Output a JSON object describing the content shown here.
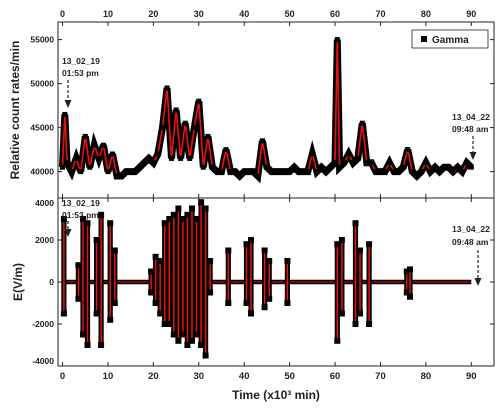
{
  "chart_data": [
    {
      "type": "line",
      "panel": "top",
      "ylabel": "Relative count rates/min",
      "xlim": [
        -1,
        95
      ],
      "ylim": [
        37000,
        57000
      ],
      "x_ticks": [
        0,
        10,
        20,
        30,
        40,
        50,
        60,
        70,
        80,
        90
      ],
      "y_ticks": [
        40000,
        45000,
        50000,
        55000
      ],
      "y_tick_labels": [
        "40000",
        "45000",
        "50000",
        "55000"
      ],
      "legend": {
        "position": "top-right",
        "label": "Gamma"
      },
      "series": [
        {
          "x": [
            0,
            0.5,
            1,
            1.5,
            2,
            3,
            4,
            5,
            6,
            7,
            8,
            9,
            10,
            11,
            12,
            13,
            14,
            15,
            16,
            17,
            18,
            19,
            20,
            21,
            22,
            23,
            24,
            25,
            26,
            27,
            28,
            29,
            30,
            31,
            32,
            33,
            34,
            35,
            36,
            37,
            38,
            39,
            40,
            41,
            42,
            43,
            44,
            45,
            46,
            47,
            48,
            49,
            50,
            51,
            52,
            53,
            54,
            55,
            56,
            57,
            58,
            59,
            60,
            60.5,
            61,
            62,
            63,
            64,
            65,
            66,
            67,
            68,
            69,
            70,
            71,
            72,
            73,
            74,
            75,
            76,
            77,
            78,
            79,
            80,
            81,
            82,
            83,
            84,
            85,
            86,
            87,
            88,
            89,
            90
          ],
          "y": [
            40500,
            46500,
            41000,
            40500,
            40000,
            41500,
            40000,
            44000,
            40500,
            43000,
            41500,
            43000,
            40000,
            42000,
            39500,
            39500,
            40000,
            40000,
            40000,
            40500,
            41000,
            41500,
            41000,
            42000,
            45000,
            49500,
            41500,
            47000,
            41500,
            45500,
            41500,
            45000,
            48000,
            40500,
            44000,
            40500,
            40000,
            40000,
            42500,
            40000,
            40000,
            39500,
            40000,
            40000,
            40000,
            39500,
            43500,
            40500,
            40000,
            40000,
            40000,
            40000,
            40000,
            40500,
            40000,
            40000,
            40000,
            42000,
            40000,
            40500,
            40000,
            40500,
            41000,
            55000,
            40500,
            41000,
            42000,
            41000,
            41500,
            45500,
            41000,
            41000,
            40000,
            40000,
            40000,
            41000,
            40000,
            40000,
            40500,
            42500,
            40000,
            39500,
            40000,
            41000,
            40000,
            40500,
            40000,
            40500,
            40500,
            40000,
            40500,
            40000,
            41000,
            40500
          ]
        }
      ],
      "annotations": [
        {
          "date": "13_02_19",
          "time": "01:53 pm"
        },
        {
          "date": "13_04_22",
          "time": "09:48 am"
        }
      ]
    },
    {
      "type": "line",
      "panel": "bottom",
      "xlabel": "Time (x10³ min)",
      "ylabel": "E(V/m)",
      "xlim": [
        -1,
        95
      ],
      "ylim": [
        -4000,
        4000
      ],
      "x_ticks": [
        0,
        10,
        20,
        30,
        40,
        50,
        60,
        70,
        80,
        90
      ],
      "y_ticks": [
        -4000,
        -2000,
        0,
        2000,
        4000
      ],
      "y_tick_labels": [
        "-4000",
        "-2000",
        "0",
        "2000",
        "4000"
      ],
      "series": [
        {
          "spikes": [
            {
              "x": 0.3,
              "max": 3000,
              "min": -1500
            },
            {
              "x": 3.5,
              "max": 800,
              "min": -800
            },
            {
              "x": 4.5,
              "max": 3000,
              "min": -2500
            },
            {
              "x": 5.5,
              "max": 2800,
              "min": -3000
            },
            {
              "x": 7.5,
              "max": 2000,
              "min": -1500
            },
            {
              "x": 8.5,
              "max": 3200,
              "min": -3000
            },
            {
              "x": 10.5,
              "max": 2800,
              "min": -1800
            },
            {
              "x": 11.5,
              "max": 1500,
              "min": -1000
            },
            {
              "x": 19.5,
              "max": 500,
              "min": -500
            },
            {
              "x": 20.5,
              "max": 1200,
              "min": -1000
            },
            {
              "x": 21.5,
              "max": 1000,
              "min": -1500
            },
            {
              "x": 22.5,
              "max": 2800,
              "min": -2000
            },
            {
              "x": 23.5,
              "max": 3000,
              "min": -2000
            },
            {
              "x": 24.5,
              "max": 3200,
              "min": -2500
            },
            {
              "x": 25.5,
              "max": 3500,
              "min": -2800
            },
            {
              "x": 26.5,
              "max": 3000,
              "min": -2500
            },
            {
              "x": 27.5,
              "max": 3200,
              "min": -3000
            },
            {
              "x": 28.5,
              "max": 3500,
              "min": -2800
            },
            {
              "x": 29.5,
              "max": 3000,
              "min": -2500
            },
            {
              "x": 30.5,
              "max": 3800,
              "min": -3000
            },
            {
              "x": 31.5,
              "max": 3500,
              "min": -3500
            },
            {
              "x": 32.5,
              "max": 1000,
              "min": -500
            },
            {
              "x": 36.5,
              "max": 1500,
              "min": -1000
            },
            {
              "x": 40.5,
              "max": 1800,
              "min": -1000
            },
            {
              "x": 41.5,
              "max": 2000,
              "min": -1500
            },
            {
              "x": 44.5,
              "max": 1500,
              "min": -1200
            },
            {
              "x": 45.5,
              "max": 1000,
              "min": -800
            },
            {
              "x": 49.5,
              "max": 1000,
              "min": -1000
            },
            {
              "x": 60.5,
              "max": 1800,
              "min": -2800
            },
            {
              "x": 61.5,
              "max": 2000,
              "min": -1500
            },
            {
              "x": 64.5,
              "max": 2800,
              "min": -2000
            },
            {
              "x": 65.5,
              "max": 1500,
              "min": -1500
            },
            {
              "x": 67.5,
              "max": 1800,
              "min": -2000
            },
            {
              "x": 75.8,
              "max": 500,
              "min": -500
            },
            {
              "x": 76.5,
              "max": 600,
              "min": -700
            }
          ]
        }
      ],
      "annotations": [
        {
          "date": "13_02_19",
          "time": "01:53 pm"
        },
        {
          "date": "13_04_22",
          "time": "09:48 am"
        }
      ]
    }
  ],
  "colors": {
    "marker": "#000000",
    "line": "#e8110f",
    "axis": "#222222"
  }
}
